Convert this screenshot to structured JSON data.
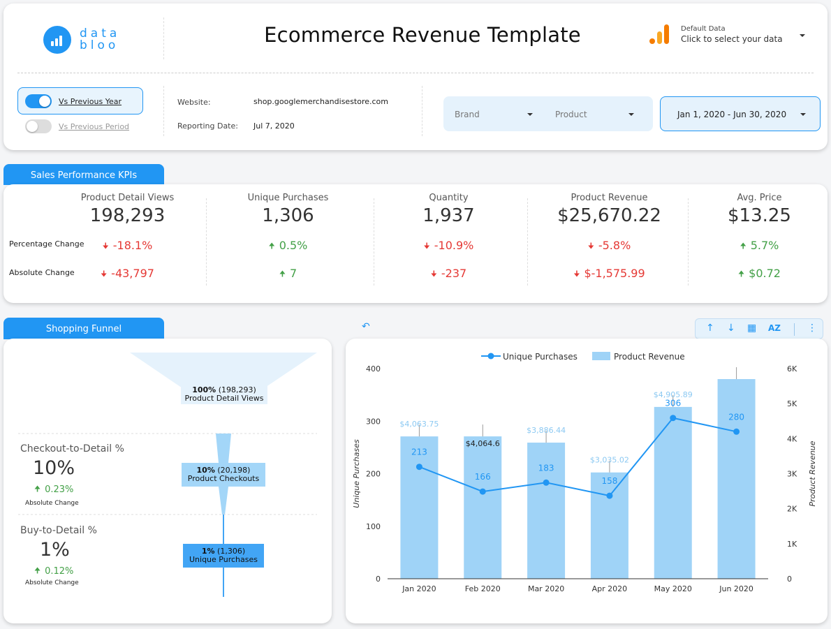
{
  "header": {
    "logo_line1": "data",
    "logo_line2": "bloo",
    "title": "Ecommerce Revenue Template",
    "data_source_small": "Default Data",
    "data_source_big": "Click to select your data",
    "toggle_active_label": "Vs Previous Year",
    "toggle_inactive_label": "Vs Previous Period",
    "website_label": "Website:",
    "website_value": "shop.googlemerchandisestore.com",
    "reporting_label": "Reporting Date:",
    "reporting_value": "Jul 7, 2020",
    "filter_brand": "Brand",
    "filter_product": "Product",
    "date_range": "Jan 1, 2020 - Jun 30, 2020"
  },
  "kpi_tab": "Sales Performance KPIs",
  "kpi_row_labels": {
    "pct": "Percentage Change",
    "abs": "Absolute Change"
  },
  "kpis": [
    {
      "name": "Product Detail Views",
      "value": "198,293",
      "pct": "-18.1%",
      "abs": "-43,797",
      "pct_dir": "down",
      "abs_dir": "down"
    },
    {
      "name": "Unique Purchases",
      "value": "1,306",
      "pct": "0.5%",
      "abs": "7",
      "pct_dir": "up",
      "abs_dir": "up"
    },
    {
      "name": "Quantity",
      "value": "1,937",
      "pct": "-10.9%",
      "abs": "-237",
      "pct_dir": "down",
      "abs_dir": "down"
    },
    {
      "name": "Product Revenue",
      "value": "$25,670.22",
      "pct": "-5.8%",
      "abs": "$-1,575.99",
      "pct_dir": "down",
      "abs_dir": "down"
    },
    {
      "name": "Avg. Price",
      "value": "$13.25",
      "pct": "5.7%",
      "abs": "$0.72",
      "pct_dir": "up",
      "abs_dir": "up"
    }
  ],
  "funnel_tab": "Shopping Funnel",
  "funnel": {
    "metric1": {
      "name": "Checkout-to-Detail %",
      "value": "10%",
      "change": "0.23%",
      "sub": "Absolute Change"
    },
    "metric2": {
      "name": "Buy-to-Detail %",
      "value": "1%",
      "change": "0.12%",
      "sub": "Absolute Change"
    },
    "stages": [
      {
        "pct": "100%",
        "count": "(198,293)",
        "label": "Product Detail Views"
      },
      {
        "pct": "10%",
        "count": "(20,198)",
        "label": "Product Checkouts"
      },
      {
        "pct": "1%",
        "count": "(1,306)",
        "label": "Unique Purchases"
      }
    ]
  },
  "colors": {
    "accent": "#2196f3",
    "bar": "#9fd3f7",
    "up": "#43a047",
    "down": "#e53935"
  },
  "icons": [
    "undo-icon",
    "sort-ascending-icon",
    "sort-descending-icon",
    "drill-chart-icon",
    "sort-az-icon",
    "more-vert-icon"
  ],
  "chart_data": {
    "type": "bar",
    "categories": [
      "Jan 2020",
      "Feb 2020",
      "Mar 2020",
      "Apr 2020",
      "May 2020",
      "Jun 2020"
    ],
    "series": [
      {
        "name": "Product Revenue",
        "type": "bar",
        "axis": "right",
        "values": [
          4063.75,
          4064.6,
          3886.44,
          3035.02,
          4905.89,
          5714.52
        ],
        "labels": [
          "$4,063.75",
          "$4,064.6",
          "$3,886.44",
          "$3,035.02",
          "$4,905.89",
          ""
        ]
      },
      {
        "name": "Unique Purchases",
        "type": "line",
        "axis": "left",
        "values": [
          213,
          166,
          183,
          158,
          306,
          280
        ],
        "labels": [
          "213",
          "166",
          "183",
          "158",
          "306",
          "280"
        ]
      }
    ],
    "ylabel": "Unique Purchases",
    "y2label": "Product Revenue",
    "ylim": [
      0,
      400
    ],
    "y2lim": [
      0,
      6000
    ],
    "yticks": [
      "0",
      "100",
      "200",
      "300",
      "400"
    ],
    "y2ticks": [
      "0",
      "1K",
      "2K",
      "3K",
      "4K",
      "5K",
      "6K"
    ],
    "legend": "top-center"
  }
}
